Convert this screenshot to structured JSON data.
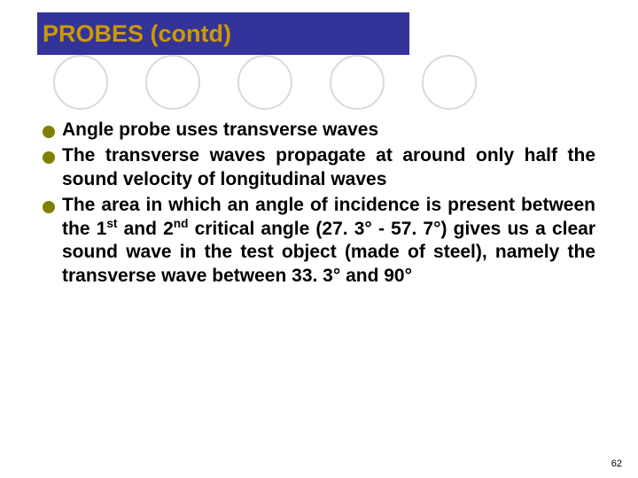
{
  "title": "PROBES (contd)",
  "bullets": [
    {
      "text": "Angle probe uses transverse waves"
    },
    {
      "text": "The transverse waves propagate at around only half the sound velocity of longitudinal waves"
    },
    {
      "html": "The area in which an angle of incidence is present between the 1<span class=\"sup\">st</span> and 2<span class=\"sup\">nd</span> critical angle (27. 3° - 57. 7°) gives us a clear sound wave in the test object (made of steel), namely the transverse wave between 33. 3° and 90°"
    }
  ],
  "page_number": "62",
  "colors": {
    "title_bg": "#333399",
    "title_text": "#cc9900",
    "bullet_marker": "#808000",
    "circle_border": "#d9d9d9",
    "body_text": "#000000",
    "background": "#ffffff"
  },
  "decorative_circle_count": 5
}
